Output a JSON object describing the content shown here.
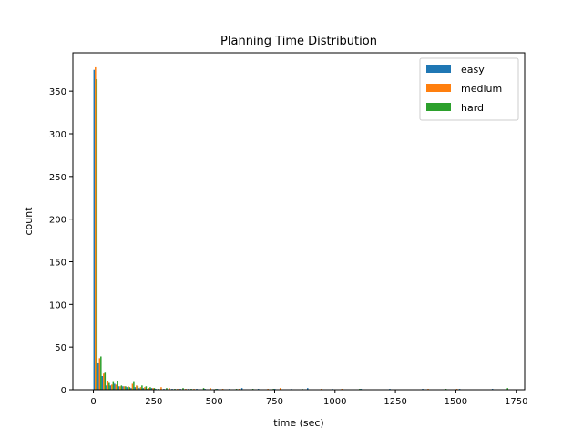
{
  "chart_data": {
    "type": "bar",
    "title": "Planning Time Distribution",
    "xlabel": "time (sec)",
    "ylabel": "count",
    "xlim": [
      -85,
      1785
    ],
    "ylim": [
      0,
      395
    ],
    "xticks": [
      0,
      250,
      500,
      750,
      1000,
      1250,
      1500,
      1750
    ],
    "yticks": [
      0,
      50,
      100,
      150,
      200,
      250,
      300,
      350
    ],
    "bin_width": 17,
    "legend_position": "top-right",
    "series": [
      {
        "name": "easy",
        "color": "#1f77b4",
        "bins": [
          {
            "x": 0,
            "count": 375
          },
          {
            "x": 17,
            "count": 31
          },
          {
            "x": 34,
            "count": 16
          },
          {
            "x": 51,
            "count": 5
          },
          {
            "x": 68,
            "count": 5
          },
          {
            "x": 85,
            "count": 7
          },
          {
            "x": 102,
            "count": 4
          },
          {
            "x": 119,
            "count": 4
          },
          {
            "x": 136,
            "count": 3
          },
          {
            "x": 153,
            "count": 2
          },
          {
            "x": 170,
            "count": 3
          },
          {
            "x": 187,
            "count": 2
          },
          {
            "x": 204,
            "count": 2
          },
          {
            "x": 221,
            "count": 1
          },
          {
            "x": 238,
            "count": 2
          },
          {
            "x": 255,
            "count": 1
          },
          {
            "x": 289,
            "count": 1
          },
          {
            "x": 323,
            "count": 1
          },
          {
            "x": 357,
            "count": 1
          },
          {
            "x": 391,
            "count": 1
          },
          {
            "x": 425,
            "count": 1
          },
          {
            "x": 459,
            "count": 1
          },
          {
            "x": 510,
            "count": 1
          },
          {
            "x": 561,
            "count": 1
          },
          {
            "x": 612,
            "count": 2
          },
          {
            "x": 680,
            "count": 1
          },
          {
            "x": 748,
            "count": 1
          },
          {
            "x": 816,
            "count": 1
          },
          {
            "x": 884,
            "count": 2
          },
          {
            "x": 986,
            "count": 1
          },
          {
            "x": 1105,
            "count": 1
          },
          {
            "x": 1224,
            "count": 1
          },
          {
            "x": 1360,
            "count": 1
          },
          {
            "x": 1513,
            "count": 1
          },
          {
            "x": 1649,
            "count": 1
          }
        ]
      },
      {
        "name": "medium",
        "color": "#ff7f0e",
        "bins": [
          {
            "x": 0,
            "count": 378
          },
          {
            "x": 17,
            "count": 37
          },
          {
            "x": 34,
            "count": 19
          },
          {
            "x": 51,
            "count": 10
          },
          {
            "x": 68,
            "count": 6
          },
          {
            "x": 85,
            "count": 6
          },
          {
            "x": 102,
            "count": 4
          },
          {
            "x": 119,
            "count": 4
          },
          {
            "x": 136,
            "count": 4
          },
          {
            "x": 153,
            "count": 7
          },
          {
            "x": 170,
            "count": 5
          },
          {
            "x": 187,
            "count": 3
          },
          {
            "x": 204,
            "count": 3
          },
          {
            "x": 221,
            "count": 2
          },
          {
            "x": 238,
            "count": 2
          },
          {
            "x": 272,
            "count": 3
          },
          {
            "x": 306,
            "count": 2
          },
          {
            "x": 340,
            "count": 1
          },
          {
            "x": 374,
            "count": 1
          },
          {
            "x": 408,
            "count": 1
          },
          {
            "x": 476,
            "count": 2
          },
          {
            "x": 527,
            "count": 1
          },
          {
            "x": 595,
            "count": 1
          },
          {
            "x": 714,
            "count": 1
          },
          {
            "x": 765,
            "count": 2
          },
          {
            "x": 935,
            "count": 1
          },
          {
            "x": 1020,
            "count": 1
          },
          {
            "x": 1377,
            "count": 1
          },
          {
            "x": 1496,
            "count": 1
          }
        ]
      },
      {
        "name": "hard",
        "color": "#2ca02c",
        "bins": [
          {
            "x": 0,
            "count": 364
          },
          {
            "x": 17,
            "count": 39
          },
          {
            "x": 34,
            "count": 20
          },
          {
            "x": 51,
            "count": 8
          },
          {
            "x": 68,
            "count": 9
          },
          {
            "x": 85,
            "count": 10
          },
          {
            "x": 102,
            "count": 5
          },
          {
            "x": 119,
            "count": 4
          },
          {
            "x": 136,
            "count": 3
          },
          {
            "x": 153,
            "count": 9
          },
          {
            "x": 170,
            "count": 4
          },
          {
            "x": 187,
            "count": 5
          },
          {
            "x": 204,
            "count": 4
          },
          {
            "x": 221,
            "count": 3
          },
          {
            "x": 238,
            "count": 2
          },
          {
            "x": 255,
            "count": 1
          },
          {
            "x": 289,
            "count": 2
          },
          {
            "x": 323,
            "count": 1
          },
          {
            "x": 357,
            "count": 2
          },
          {
            "x": 391,
            "count": 1
          },
          {
            "x": 442,
            "count": 2
          },
          {
            "x": 493,
            "count": 1
          },
          {
            "x": 578,
            "count": 1
          },
          {
            "x": 646,
            "count": 1
          },
          {
            "x": 731,
            "count": 1
          },
          {
            "x": 850,
            "count": 1
          },
          {
            "x": 1088,
            "count": 1
          },
          {
            "x": 1445,
            "count": 1
          },
          {
            "x": 1700,
            "count": 2
          }
        ]
      }
    ]
  }
}
